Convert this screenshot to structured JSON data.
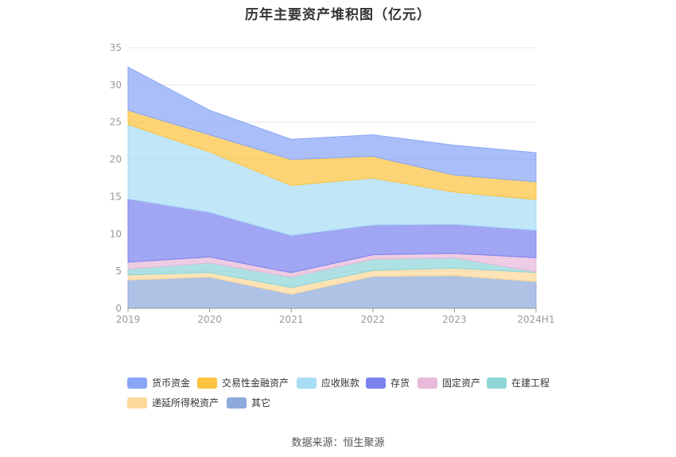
{
  "title": "历年主要资产堆积图（亿元）",
  "source": "数据来源：恒生聚源",
  "chart_data": {
    "type": "area",
    "stacked": true,
    "title": "历年主要资产堆积图（亿元）",
    "xlabel": "",
    "ylabel": "",
    "categories": [
      "2019",
      "2020",
      "2021",
      "2022",
      "2023",
      "2024H1"
    ],
    "ylim": [
      0,
      35
    ],
    "yticks": [
      0,
      5,
      10,
      15,
      20,
      25,
      30,
      35
    ],
    "grid": true,
    "legend_position": "bottom",
    "series": [
      {
        "name": "其它",
        "color": "#8eaadb",
        "values": [
          3.8,
          4.2,
          1.9,
          4.3,
          4.4,
          3.6
        ]
      },
      {
        "name": "递延所得税资产",
        "color": "#fcd89a",
        "values": [
          0.7,
          0.6,
          0.9,
          0.8,
          1.0,
          1.2
        ]
      },
      {
        "name": "在建工程",
        "color": "#8fd6d8",
        "values": [
          0.8,
          1.3,
          1.4,
          1.5,
          1.4,
          0.1
        ]
      },
      {
        "name": "固定资产",
        "color": "#e8b9d9",
        "values": [
          0.9,
          0.8,
          0.6,
          0.6,
          0.6,
          1.9
        ]
      },
      {
        "name": "存货",
        "color": "#7b83f0",
        "values": [
          8.5,
          6.0,
          5.0,
          4.0,
          3.9,
          3.7
        ]
      },
      {
        "name": "应收账款",
        "color": "#a9dcf5",
        "values": [
          10.0,
          8.1,
          6.7,
          6.3,
          4.3,
          4.1
        ]
      },
      {
        "name": "交易性金融资产",
        "color": "#fcc440",
        "values": [
          1.9,
          2.3,
          3.5,
          2.9,
          2.3,
          2.4
        ]
      },
      {
        "name": "货币资金",
        "color": "#89a6f7",
        "values": [
          5.8,
          3.3,
          2.7,
          2.9,
          4.0,
          3.9
        ]
      }
    ],
    "legend_order": [
      "货币资金",
      "交易性金融资产",
      "应收账款",
      "存货",
      "固定资产",
      "在建工程",
      "递延所得税资产",
      "其它"
    ]
  }
}
